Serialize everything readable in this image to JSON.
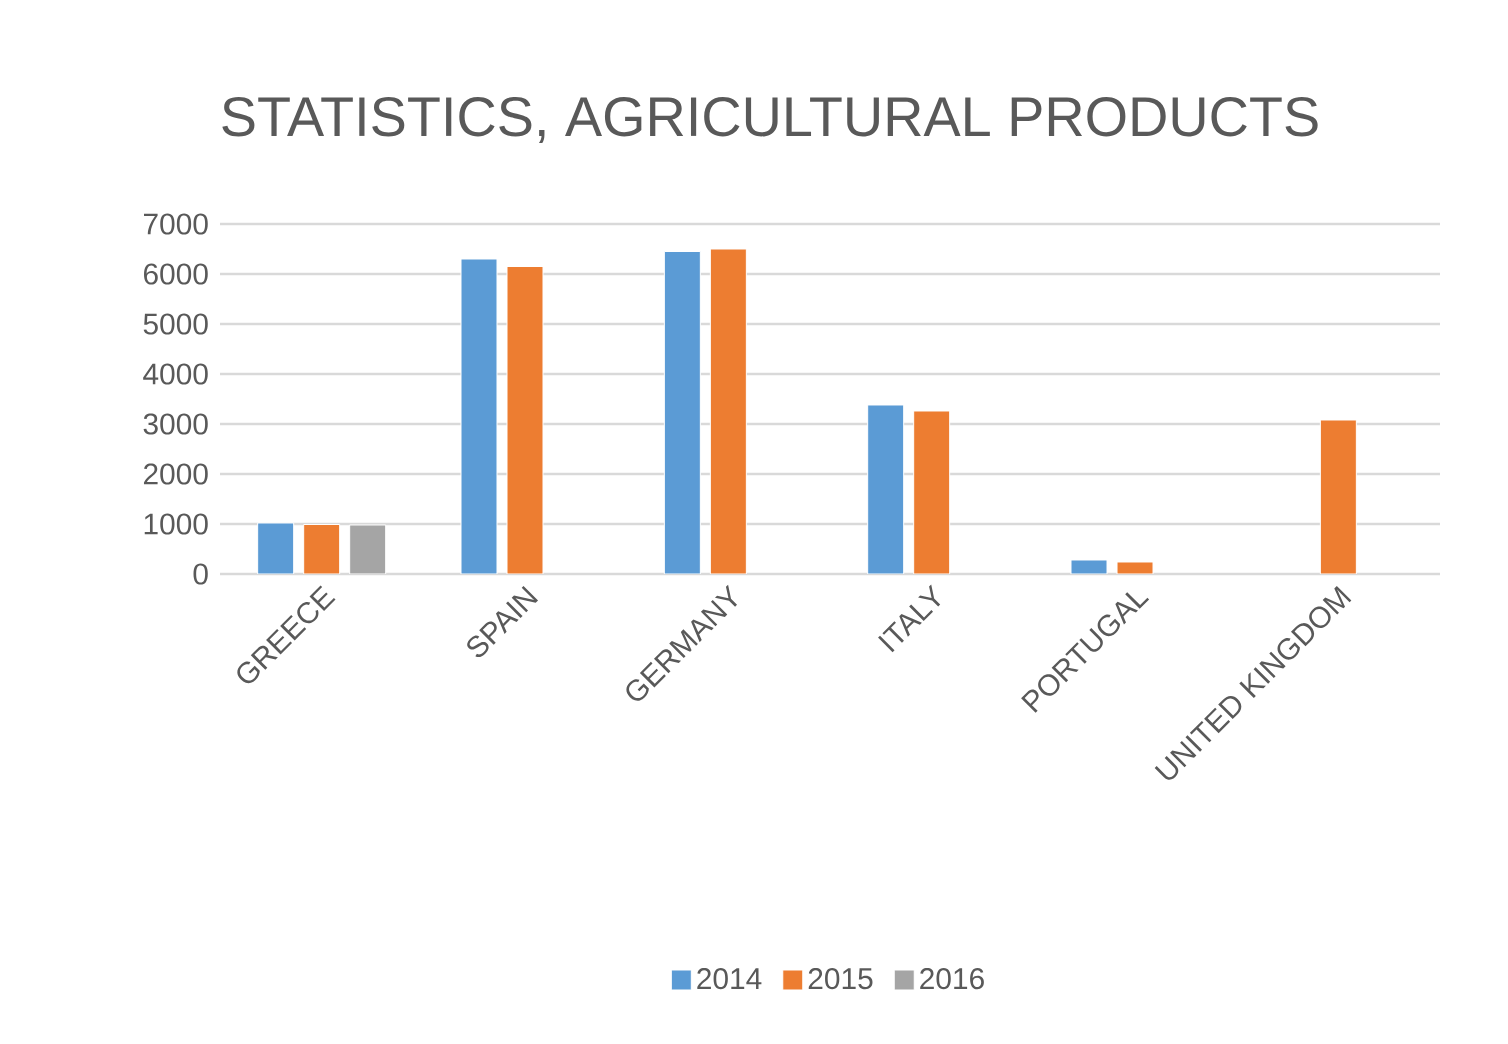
{
  "chart_data": {
    "type": "bar",
    "title": "STATISTICS, AGRICULTURAL PRODUCTS",
    "categories": [
      "GREECE",
      "SPAIN",
      "GERMANY",
      "ITALY",
      "PORTUGAL",
      "UNITED KINGDOM"
    ],
    "series": [
      {
        "name": "2014",
        "color": "#5b9bd5",
        "values": [
          1020,
          6300,
          6450,
          3380,
          280,
          null
        ]
      },
      {
        "name": "2015",
        "color": "#ed7d31",
        "values": [
          990,
          6150,
          6500,
          3260,
          240,
          3080
        ]
      },
      {
        "name": "2016",
        "color": "#a5a5a5",
        "values": [
          980,
          null,
          null,
          null,
          null,
          null
        ]
      }
    ],
    "ylim": [
      0,
      7000
    ],
    "yticks": [
      0,
      1000,
      2000,
      3000,
      4000,
      5000,
      6000,
      7000
    ],
    "grid": "y",
    "legend": "bottom"
  }
}
